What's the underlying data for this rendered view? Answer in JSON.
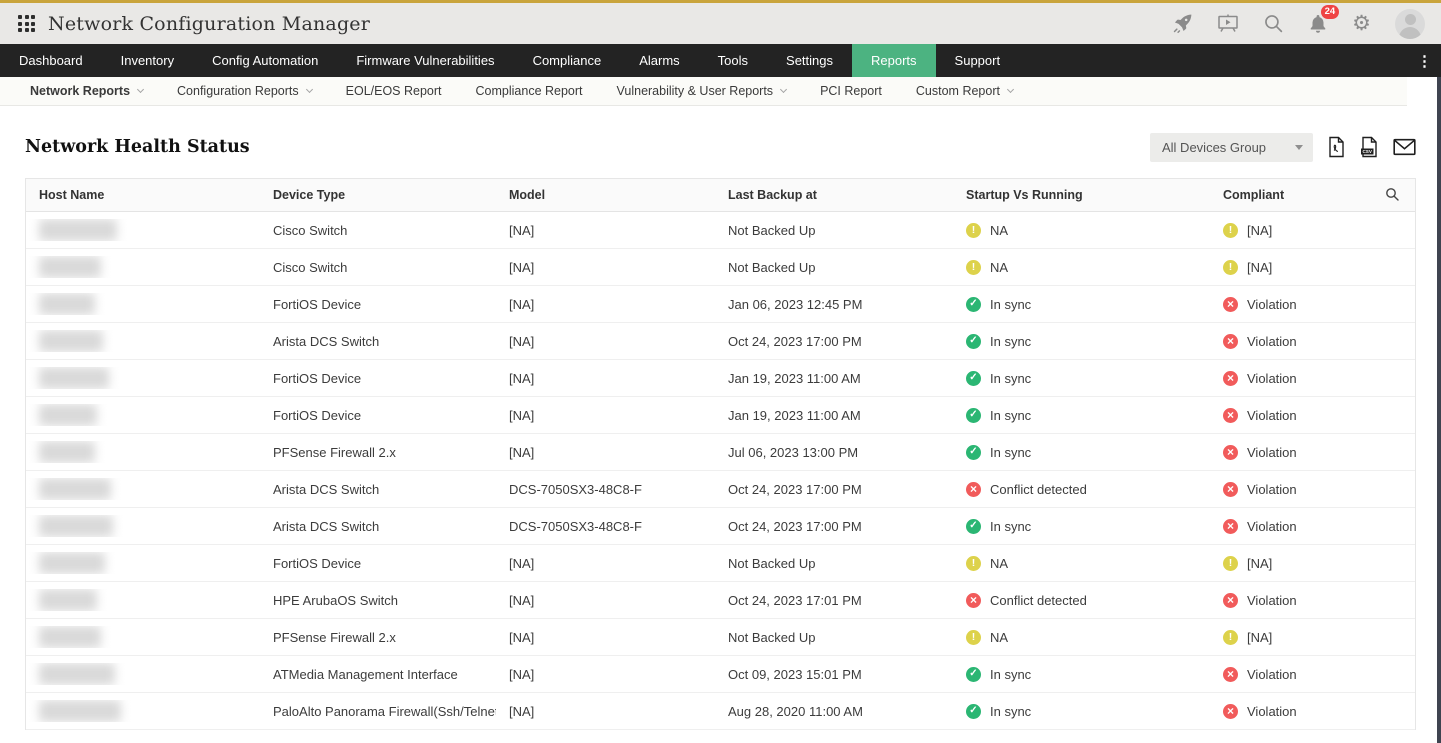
{
  "topbar": {
    "title": "Network Configuration Manager",
    "notification_count": "24"
  },
  "navbar": {
    "items": [
      {
        "label": "Dashboard",
        "active": false
      },
      {
        "label": "Inventory",
        "active": false
      },
      {
        "label": "Config Automation",
        "active": false
      },
      {
        "label": "Firmware Vulnerabilities",
        "active": false
      },
      {
        "label": "Compliance",
        "active": false
      },
      {
        "label": "Alarms",
        "active": false
      },
      {
        "label": "Tools",
        "active": false
      },
      {
        "label": "Settings",
        "active": false
      },
      {
        "label": "Reports",
        "active": true
      },
      {
        "label": "Support",
        "active": false
      }
    ]
  },
  "subnav": {
    "items": [
      {
        "label": "Network Reports",
        "dropdown": true,
        "active": true
      },
      {
        "label": "Configuration Reports",
        "dropdown": true,
        "active": false
      },
      {
        "label": "EOL/EOS Report",
        "dropdown": false,
        "active": false
      },
      {
        "label": "Compliance Report",
        "dropdown": false,
        "active": false
      },
      {
        "label": "Vulnerability & User Reports",
        "dropdown": true,
        "active": false
      },
      {
        "label": "PCI Report",
        "dropdown": false,
        "active": false
      },
      {
        "label": "Custom Report",
        "dropdown": true,
        "active": false
      }
    ]
  },
  "page": {
    "title": "Network Health Status",
    "group_selector": "All Devices Group"
  },
  "table": {
    "columns": [
      "Host Name",
      "Device Type",
      "Model",
      "Last Backup at",
      "Startup Vs Running",
      "Compliant"
    ],
    "rows": [
      {
        "device_type": "Cisco Switch",
        "model": "[NA]",
        "last_backup": "Not Backed Up",
        "startup": {
          "state": "warn",
          "label": "NA"
        },
        "compliant": {
          "state": "warn",
          "label": "[NA]"
        }
      },
      {
        "device_type": "Cisco Switch",
        "model": "[NA]",
        "last_backup": "Not Backed Up",
        "startup": {
          "state": "warn",
          "label": "NA"
        },
        "compliant": {
          "state": "warn",
          "label": "[NA]"
        }
      },
      {
        "device_type": "FortiOS Device",
        "model": "[NA]",
        "last_backup": "Jan 06, 2023 12:45 PM",
        "startup": {
          "state": "ok",
          "label": "In sync"
        },
        "compliant": {
          "state": "error",
          "label": "Violation"
        }
      },
      {
        "device_type": "Arista DCS Switch",
        "model": "[NA]",
        "last_backup": "Oct 24, 2023 17:00 PM",
        "startup": {
          "state": "ok",
          "label": "In sync"
        },
        "compliant": {
          "state": "error",
          "label": "Violation"
        }
      },
      {
        "device_type": "FortiOS Device",
        "model": "[NA]",
        "last_backup": "Jan 19, 2023 11:00 AM",
        "startup": {
          "state": "ok",
          "label": "In sync"
        },
        "compliant": {
          "state": "error",
          "label": "Violation"
        }
      },
      {
        "device_type": "FortiOS Device",
        "model": "[NA]",
        "last_backup": "Jan 19, 2023 11:00 AM",
        "startup": {
          "state": "ok",
          "label": "In sync"
        },
        "compliant": {
          "state": "error",
          "label": "Violation"
        }
      },
      {
        "device_type": "PFSense Firewall 2.x",
        "model": "[NA]",
        "last_backup": "Jul 06, 2023 13:00 PM",
        "startup": {
          "state": "ok",
          "label": "In sync"
        },
        "compliant": {
          "state": "error",
          "label": "Violation"
        }
      },
      {
        "device_type": "Arista DCS Switch",
        "model": "DCS-7050SX3-48C8-F",
        "last_backup": "Oct 24, 2023 17:00 PM",
        "startup": {
          "state": "error",
          "label": "Conflict detected"
        },
        "compliant": {
          "state": "error",
          "label": "Violation"
        }
      },
      {
        "device_type": "Arista DCS Switch",
        "model": "DCS-7050SX3-48C8-F",
        "last_backup": "Oct 24, 2023 17:00 PM",
        "startup": {
          "state": "ok",
          "label": "In sync"
        },
        "compliant": {
          "state": "error",
          "label": "Violation"
        }
      },
      {
        "device_type": "FortiOS Device",
        "model": "[NA]",
        "last_backup": "Not Backed Up",
        "startup": {
          "state": "warn",
          "label": "NA"
        },
        "compliant": {
          "state": "warn",
          "label": "[NA]"
        }
      },
      {
        "device_type": "HPE ArubaOS Switch",
        "model": "[NA]",
        "last_backup": "Oct 24, 2023 17:01 PM",
        "startup": {
          "state": "error",
          "label": "Conflict detected"
        },
        "compliant": {
          "state": "error",
          "label": "Violation"
        }
      },
      {
        "device_type": "PFSense Firewall 2.x",
        "model": "[NA]",
        "last_backup": "Not Backed Up",
        "startup": {
          "state": "warn",
          "label": "NA"
        },
        "compliant": {
          "state": "warn",
          "label": "[NA]"
        }
      },
      {
        "device_type": "ATMedia Management Interface",
        "model": "[NA]",
        "last_backup": "Oct 09, 2023 15:01 PM",
        "startup": {
          "state": "ok",
          "label": "In sync"
        },
        "compliant": {
          "state": "error",
          "label": "Violation"
        }
      },
      {
        "device_type": "PaloAlto Panorama Firewall(Ssh/Telnet)",
        "model": "[NA]",
        "last_backup": "Aug 28, 2020 11:00 AM",
        "startup": {
          "state": "ok",
          "label": "In sync"
        },
        "compliant": {
          "state": "error",
          "label": "Violation"
        }
      }
    ]
  },
  "glyphs": {
    "gear": "⚙",
    "overflow": "⋮",
    "check": "✓",
    "cross": "×",
    "exclaim": "!"
  },
  "colors": {
    "accent_green": "#4cb381",
    "status_ok": "#2bb673",
    "status_error": "#f15b5b",
    "status_warn": "#ddd24b",
    "badge_red": "#ef4444",
    "top_border_gold": "#c9a43c"
  }
}
